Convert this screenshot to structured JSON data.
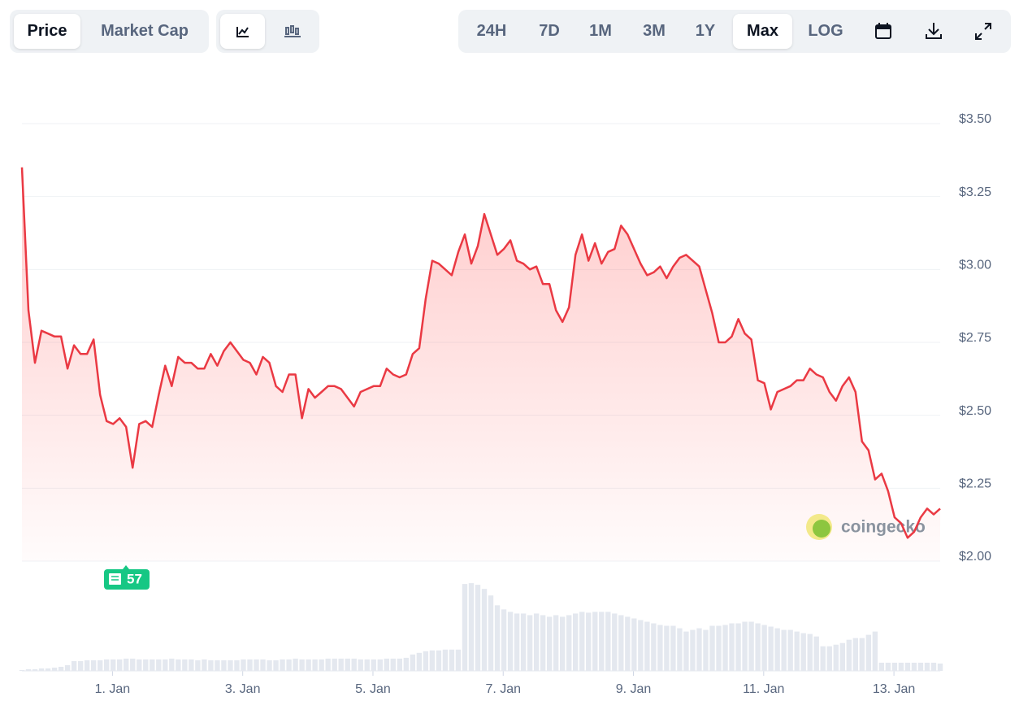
{
  "controls": {
    "views": [
      "Price",
      "Market Cap"
    ],
    "ranges": [
      "24H",
      "7D",
      "1M",
      "3M",
      "1Y",
      "Max"
    ],
    "log": "LOG"
  },
  "news_badge": "57",
  "watermark": "coingecko",
  "chart_data": {
    "type": "line",
    "color": "#ea3943",
    "x": [
      -0.39,
      -0.29,
      -0.19,
      -0.09,
      0.01,
      0.11,
      0.21,
      0.31,
      0.41,
      0.51,
      0.61,
      0.71,
      0.81,
      0.91,
      1.01,
      1.11,
      1.21,
      1.31,
      1.41,
      1.51,
      1.61,
      1.71,
      1.81,
      1.91,
      2.01,
      2.11,
      2.21,
      2.31,
      2.41,
      2.51,
      2.61,
      2.71,
      2.81,
      2.91,
      3.01,
      3.11,
      3.21,
      3.31,
      3.41,
      3.51,
      3.61,
      3.71,
      3.81,
      3.91,
      4.01,
      4.11,
      4.21,
      4.31,
      4.41,
      4.51,
      4.61,
      4.71,
      4.81,
      4.91,
      5.01,
      5.11,
      5.21,
      5.31,
      5.41,
      5.51,
      5.61,
      5.71,
      5.81,
      5.91,
      6.01,
      6.11,
      6.21,
      6.31,
      6.41,
      6.51,
      6.61,
      6.71,
      6.81,
      6.91,
      7.01,
      7.11,
      7.21,
      7.31,
      7.41,
      7.51,
      7.61,
      7.71,
      7.81,
      7.91,
      8.01,
      8.11,
      8.21,
      8.31,
      8.41,
      8.51,
      8.61,
      8.71,
      8.81,
      8.91,
      9.01,
      9.11,
      9.21,
      9.31,
      9.41,
      9.51,
      9.61,
      9.71,
      9.81,
      9.91,
      10.01,
      10.11,
      10.21,
      10.31,
      10.41,
      10.51,
      10.61,
      10.71,
      10.81,
      10.91,
      11.01,
      11.11,
      11.21,
      11.31,
      11.41,
      11.51,
      11.61,
      11.71,
      11.81,
      11.91,
      12.01,
      12.11,
      12.21,
      12.31,
      12.41,
      12.51,
      12.61,
      12.71,
      12.81,
      12.91,
      13.01,
      13.11,
      13.21,
      13.31,
      13.41,
      13.51,
      13.61,
      13.71
    ],
    "values": [
      3.35,
      2.86,
      2.68,
      2.79,
      2.78,
      2.77,
      2.77,
      2.66,
      2.74,
      2.71,
      2.71,
      2.76,
      2.57,
      2.48,
      2.47,
      2.49,
      2.46,
      2.32,
      2.47,
      2.48,
      2.46,
      2.57,
      2.67,
      2.6,
      2.7,
      2.68,
      2.68,
      2.66,
      2.66,
      2.71,
      2.67,
      2.72,
      2.75,
      2.72,
      2.69,
      2.68,
      2.64,
      2.7,
      2.68,
      2.6,
      2.58,
      2.64,
      2.64,
      2.49,
      2.59,
      2.56,
      2.58,
      2.6,
      2.6,
      2.59,
      2.56,
      2.53,
      2.58,
      2.59,
      2.6,
      2.6,
      2.66,
      2.64,
      2.63,
      2.64,
      2.71,
      2.73,
      2.9,
      3.03,
      3.02,
      3.0,
      2.98,
      3.06,
      3.12,
      3.02,
      3.08,
      3.19,
      3.12,
      3.05,
      3.07,
      3.1,
      3.03,
      3.02,
      3.0,
      3.01,
      2.95,
      2.95,
      2.86,
      2.82,
      2.87,
      3.05,
      3.12,
      3.03,
      3.09,
      3.02,
      3.06,
      3.07,
      3.15,
      3.12,
      3.07,
      3.02,
      2.98,
      2.99,
      3.01,
      2.97,
      3.01,
      3.04,
      3.05,
      3.03,
      3.01,
      2.93,
      2.85,
      2.75,
      2.75,
      2.77,
      2.83,
      2.78,
      2.76,
      2.62,
      2.61,
      2.52,
      2.58,
      2.59,
      2.6,
      2.62,
      2.62,
      2.66,
      2.64,
      2.63,
      2.58,
      2.55,
      2.6,
      2.63,
      2.58,
      2.41,
      2.38,
      2.28,
      2.3,
      2.24,
      2.15,
      2.13,
      2.08,
      2.1,
      2.15,
      2.18,
      2.16,
      2.18
    ],
    "volume": {
      "color": "#e4e8ef",
      "ylim": [
        0,
        120
      ],
      "values": [
        1,
        2,
        2,
        3,
        3,
        4,
        5,
        7,
        12,
        12,
        13,
        13,
        13,
        14,
        14,
        14,
        15,
        15,
        14,
        14,
        14,
        14,
        14,
        15,
        14,
        14,
        14,
        13,
        14,
        13,
        13,
        13,
        13,
        13,
        14,
        14,
        14,
        14,
        13,
        13,
        14,
        14,
        15,
        14,
        14,
        14,
        14,
        15,
        15,
        15,
        15,
        15,
        14,
        14,
        14,
        14,
        15,
        15,
        15,
        16,
        20,
        22,
        24,
        25,
        25,
        26,
        26,
        26,
        106,
        107,
        105,
        100,
        92,
        80,
        75,
        72,
        70,
        70,
        68,
        70,
        68,
        66,
        68,
        66,
        68,
        70,
        72,
        71,
        72,
        72,
        72,
        70,
        68,
        66,
        64,
        62,
        60,
        58,
        56,
        55,
        55,
        52,
        48,
        50,
        52,
        50,
        55,
        55,
        56,
        58,
        58,
        60,
        60,
        58,
        56,
        54,
        52,
        50,
        50,
        48,
        46,
        45,
        42,
        30,
        30,
        32,
        34,
        38,
        40,
        40,
        44,
        48,
        10,
        10,
        10,
        10,
        10,
        10,
        10,
        10,
        10,
        9
      ]
    },
    "xlim": [
      -0.39,
      13.71
    ],
    "xticks": [
      {
        "value": 1,
        "label": "1. Jan"
      },
      {
        "value": 3,
        "label": "3. Jan"
      },
      {
        "value": 5,
        "label": "5. Jan"
      },
      {
        "value": 7,
        "label": "7. Jan"
      },
      {
        "value": 9,
        "label": "9. Jan"
      },
      {
        "value": 11,
        "label": "11. Jan"
      },
      {
        "value": 13,
        "label": "13. Jan"
      }
    ],
    "ylim": [
      2,
      3.5
    ],
    "yticks": [
      {
        "value": 2,
        "label": "$2.00"
      },
      {
        "value": 2.25,
        "label": "$2.25"
      },
      {
        "value": 2.5,
        "label": "$2.50"
      },
      {
        "value": 2.75,
        "label": "$2.75"
      },
      {
        "value": 3,
        "label": "$3.00"
      },
      {
        "value": 3.25,
        "label": "$3.25"
      },
      {
        "value": 3.5,
        "label": "$3.50"
      }
    ],
    "grid": true
  }
}
